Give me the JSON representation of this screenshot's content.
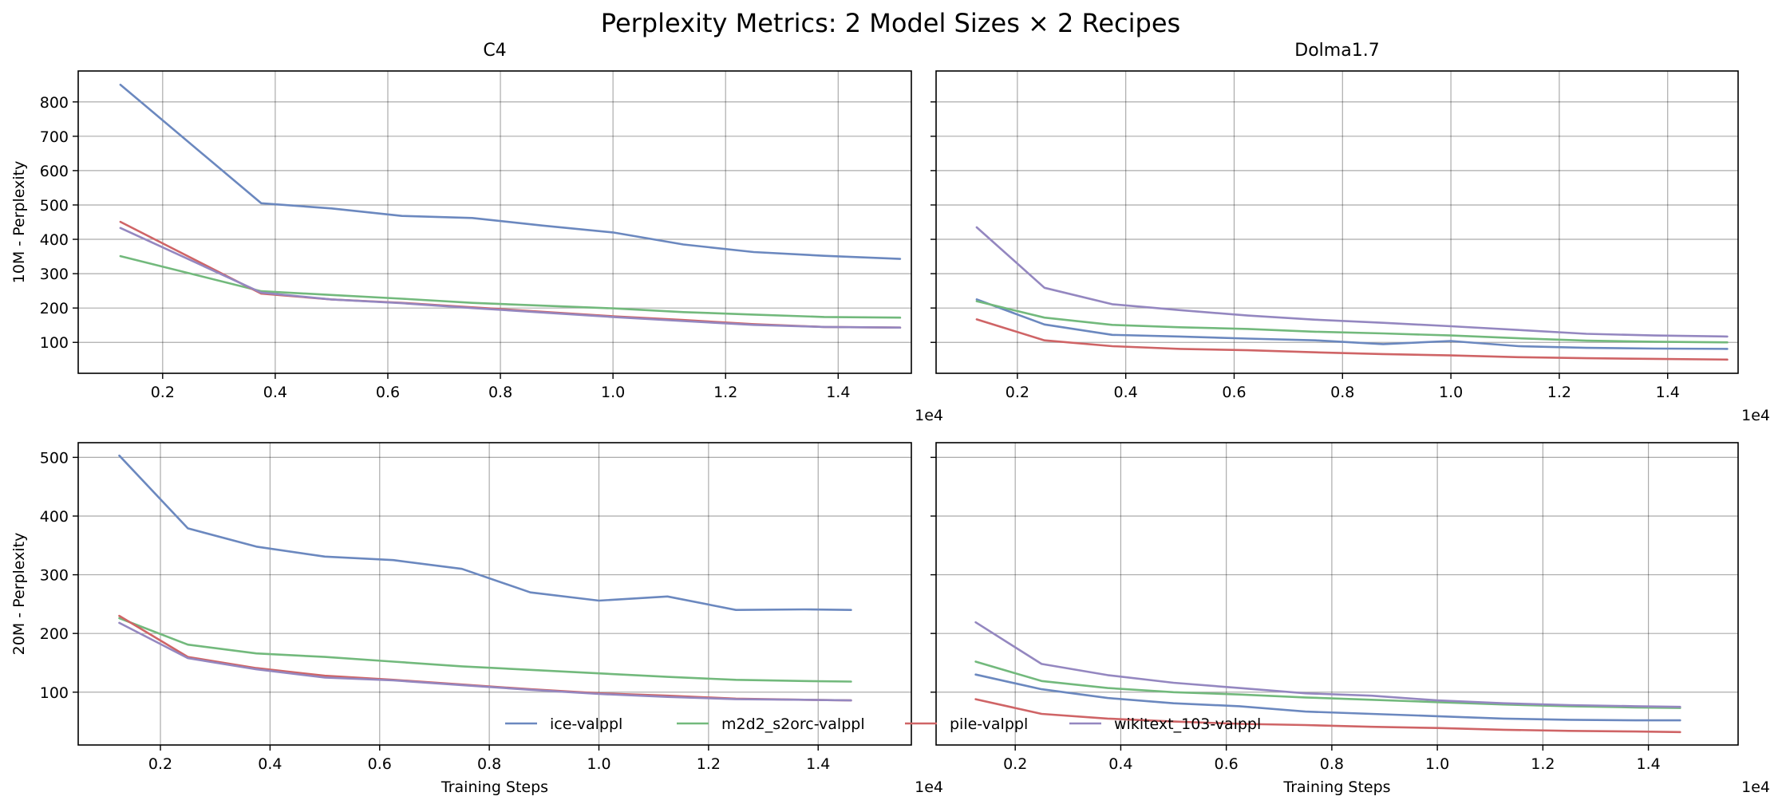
{
  "figure": {
    "suptitle": "Perplexity Metrics: 2 Model Sizes × 2 Recipes"
  },
  "colors": {
    "ice-valppl": "#6b88bf",
    "m2d2_s2orc-valppl": "#72b97c",
    "pile-valppl": "#cf6466",
    "wikitext_103-valppl": "#9487c0"
  },
  "legend": {
    "placement": "lower center",
    "entries": [
      "ice-valppl",
      "m2d2_s2orc-valppl",
      "pile-valppl",
      "wikitext_103-valppl"
    ]
  },
  "chart_data": [
    {
      "type": "line",
      "title": "C4",
      "xlabel": "",
      "ylabel": "10M - Perplexity",
      "x_offset_text": "1e4",
      "xlim": [
        0.05,
        1.53
      ],
      "ylim": [
        10,
        890
      ],
      "xticks": [
        0.2,
        0.4,
        0.6,
        0.8,
        1.0,
        1.2,
        1.4
      ],
      "xtick_labels": [
        "0.2",
        "0.4",
        "0.6",
        "0.8",
        "1.0",
        "1.2",
        "1.4"
      ],
      "yticks": [
        100,
        200,
        300,
        400,
        500,
        600,
        700,
        800
      ],
      "ytick_labels": [
        "100",
        "200",
        "300",
        "400",
        "500",
        "600",
        "700",
        "800"
      ],
      "grid": true,
      "series": [
        {
          "name": "ice-valppl",
          "x": [
            0.125,
            0.375,
            0.5,
            0.625,
            0.75,
            0.875,
            1.0,
            1.125,
            1.25,
            1.375,
            1.51
          ],
          "y": [
            850,
            505,
            490,
            468,
            462,
            440,
            420,
            385,
            363,
            352,
            343
          ]
        },
        {
          "name": "m2d2_s2orc-valppl",
          "x": [
            0.125,
            0.375,
            0.5,
            0.625,
            0.75,
            0.875,
            1.0,
            1.125,
            1.25,
            1.375,
            1.51
          ],
          "y": [
            351,
            249,
            238,
            227,
            215,
            207,
            199,
            188,
            181,
            174,
            172
          ]
        },
        {
          "name": "pile-valppl",
          "x": [
            0.125,
            0.375,
            0.5,
            0.625,
            0.75,
            0.875,
            1.0,
            1.125,
            1.25,
            1.375,
            1.51
          ],
          "y": [
            451,
            242,
            225,
            215,
            202,
            189,
            176,
            165,
            153,
            145,
            143
          ]
        },
        {
          "name": "wikitext_103-valppl",
          "x": [
            0.125,
            0.375,
            0.5,
            0.625,
            0.75,
            0.875,
            1.0,
            1.125,
            1.25,
            1.375,
            1.51
          ],
          "y": [
            433,
            245,
            225,
            214,
            200,
            187,
            174,
            162,
            151,
            145,
            143
          ]
        }
      ]
    },
    {
      "type": "line",
      "title": "Dolma1.7",
      "xlabel": "",
      "ylabel": "",
      "x_offset_text": "1e4",
      "xlim": [
        0.05,
        1.53
      ],
      "ylim": [
        10,
        890
      ],
      "xticks": [
        0.2,
        0.4,
        0.6,
        0.8,
        1.0,
        1.2,
        1.4
      ],
      "xtick_labels": [
        "0.2",
        "0.4",
        "0.6",
        "0.8",
        "1.0",
        "1.2",
        "1.4"
      ],
      "yticks": [
        100,
        200,
        300,
        400,
        500,
        600,
        700,
        800
      ],
      "ytick_labels": [],
      "grid": true,
      "series": [
        {
          "name": "ice-valppl",
          "x": [
            0.125,
            0.25,
            0.375,
            0.5,
            0.625,
            0.75,
            0.875,
            1.0,
            1.125,
            1.25,
            1.375,
            1.51
          ],
          "y": [
            225,
            152,
            122,
            117,
            111,
            106,
            95,
            104,
            89,
            84,
            82,
            81
          ]
        },
        {
          "name": "m2d2_s2orc-valppl",
          "x": [
            0.125,
            0.25,
            0.375,
            0.5,
            0.625,
            0.75,
            0.875,
            1.0,
            1.125,
            1.25,
            1.375,
            1.51
          ],
          "y": [
            220,
            172,
            151,
            144,
            139,
            131,
            126,
            120,
            112,
            105,
            102,
            100
          ]
        },
        {
          "name": "pile-valppl",
          "x": [
            0.125,
            0.25,
            0.375,
            0.5,
            0.625,
            0.75,
            0.875,
            1.0,
            1.125,
            1.25,
            1.375,
            1.51
          ],
          "y": [
            167,
            106,
            89,
            81,
            77,
            71,
            66,
            62,
            57,
            54,
            52,
            50
          ]
        },
        {
          "name": "wikitext_103-valppl",
          "x": [
            0.125,
            0.25,
            0.375,
            0.5,
            0.625,
            0.75,
            0.875,
            1.0,
            1.125,
            1.25,
            1.375,
            1.51
          ],
          "y": [
            435,
            259,
            211,
            194,
            178,
            166,
            157,
            147,
            136,
            125,
            120,
            117
          ]
        }
      ]
    },
    {
      "type": "line",
      "title": "",
      "xlabel": "Training Steps",
      "ylabel": "20M - Perplexity",
      "x_offset_text": "1e4",
      "xlim": [
        0.05,
        1.57
      ],
      "ylim": [
        10,
        525
      ],
      "xticks": [
        0.2,
        0.4,
        0.6,
        0.8,
        1.0,
        1.2,
        1.4
      ],
      "xtick_labels": [
        "0.2",
        "0.4",
        "0.6",
        "0.8",
        "1.0",
        "1.2",
        "1.4"
      ],
      "yticks": [
        100,
        200,
        300,
        400,
        500
      ],
      "ytick_labels": [
        "100",
        "200",
        "300",
        "400",
        "500"
      ],
      "grid": true,
      "series": [
        {
          "name": "ice-valppl",
          "x": [
            0.125,
            0.25,
            0.375,
            0.5,
            0.625,
            0.75,
            0.875,
            1.0,
            1.125,
            1.25,
            1.375,
            1.46
          ],
          "y": [
            503,
            379,
            348,
            331,
            325,
            310,
            270,
            256,
            263,
            240,
            241,
            240
          ]
        },
        {
          "name": "m2d2_s2orc-valppl",
          "x": [
            0.125,
            0.25,
            0.375,
            0.5,
            0.625,
            0.75,
            0.875,
            1.0,
            1.125,
            1.25,
            1.375,
            1.46
          ],
          "y": [
            226,
            181,
            166,
            160,
            152,
            144,
            138,
            132,
            126,
            121,
            119,
            118
          ]
        },
        {
          "name": "pile-valppl",
          "x": [
            0.125,
            0.25,
            0.375,
            0.5,
            0.625,
            0.75,
            0.875,
            1.0,
            1.125,
            1.25,
            1.375,
            1.46
          ],
          "y": [
            230,
            160,
            141,
            128,
            121,
            113,
            105,
            98,
            94,
            89,
            87,
            86
          ]
        },
        {
          "name": "wikitext_103-valppl",
          "x": [
            0.125,
            0.25,
            0.375,
            0.5,
            0.625,
            0.75,
            0.875,
            1.0,
            1.125,
            1.25,
            1.375,
            1.46
          ],
          "y": [
            218,
            158,
            139,
            125,
            120,
            112,
            104,
            97,
            92,
            88,
            87,
            86
          ]
        }
      ]
    },
    {
      "type": "line",
      "title": "",
      "xlabel": "Training Steps",
      "ylabel": "",
      "x_offset_text": "1e4",
      "xlim": [
        0.05,
        1.57
      ],
      "ylim": [
        10,
        525
      ],
      "xticks": [
        0.2,
        0.4,
        0.6,
        0.8,
        1.0,
        1.2,
        1.4
      ],
      "xtick_labels": [
        "0.2",
        "0.4",
        "0.6",
        "0.8",
        "1.0",
        "1.2",
        "1.4"
      ],
      "yticks": [
        100,
        200,
        300,
        400,
        500
      ],
      "ytick_labels": [],
      "grid": true,
      "series": [
        {
          "name": "ice-valppl",
          "x": [
            0.125,
            0.25,
            0.375,
            0.5,
            0.625,
            0.75,
            0.875,
            1.0,
            1.125,
            1.25,
            1.375,
            1.46
          ],
          "y": [
            130,
            105,
            90,
            81,
            76,
            67,
            63,
            59,
            55,
            53,
            52,
            52
          ]
        },
        {
          "name": "m2d2_s2orc-valppl",
          "x": [
            0.125,
            0.25,
            0.375,
            0.5,
            0.625,
            0.75,
            0.875,
            1.0,
            1.125,
            1.25,
            1.375,
            1.46
          ],
          "y": [
            152,
            119,
            107,
            100,
            96,
            91,
            87,
            83,
            79,
            76,
            74,
            73
          ]
        },
        {
          "name": "pile-valppl",
          "x": [
            0.125,
            0.25,
            0.375,
            0.5,
            0.625,
            0.75,
            0.875,
            1.0,
            1.125,
            1.25,
            1.375,
            1.46
          ],
          "y": [
            88,
            63,
            55,
            50,
            46,
            44,
            41,
            39,
            36,
            34,
            33,
            32
          ]
        },
        {
          "name": "wikitext_103-valppl",
          "x": [
            0.125,
            0.25,
            0.375,
            0.5,
            0.625,
            0.75,
            0.875,
            1.0,
            1.125,
            1.25,
            1.375,
            1.46
          ],
          "y": [
            219,
            148,
            129,
            116,
            107,
            98,
            94,
            86,
            81,
            78,
            76,
            75
          ]
        }
      ]
    }
  ]
}
